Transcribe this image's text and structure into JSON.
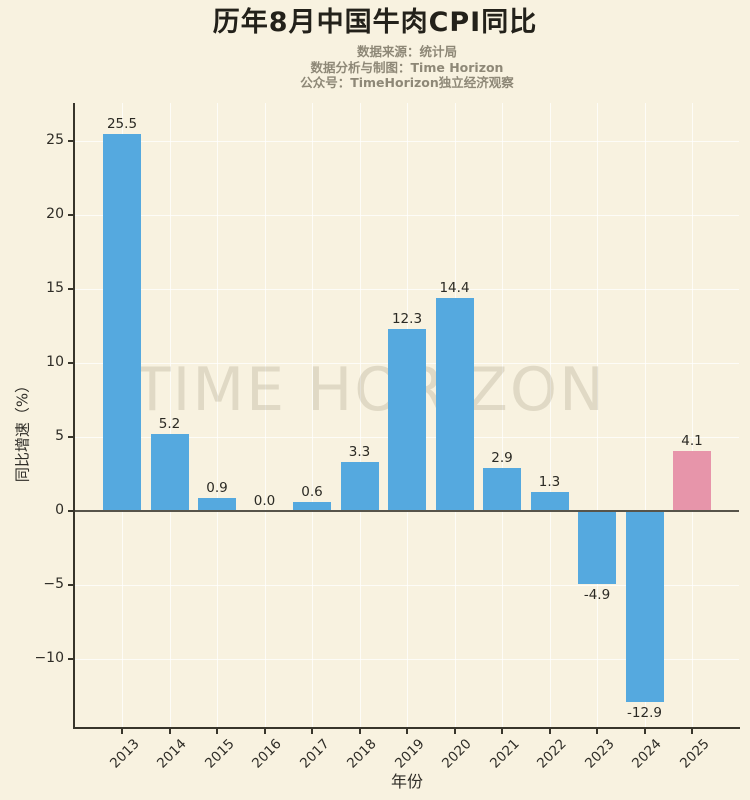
{
  "chart_data": {
    "type": "bar",
    "title": "历年8月中国牛肉CPI同比",
    "subtitle_lines": [
      "数据来源：统计局",
      "数据分析与制图：Time Horizon",
      "公众号：TimeHorizon独立经济观察"
    ],
    "watermark": "TIME HORIZON",
    "categories": [
      "2013",
      "2014",
      "2015",
      "2016",
      "2017",
      "2018",
      "2019",
      "2020",
      "2021",
      "2022",
      "2023",
      "2024",
      "2025"
    ],
    "values": [
      25.5,
      5.2,
      0.9,
      0.0,
      0.6,
      3.3,
      12.3,
      14.4,
      2.9,
      1.3,
      -4.9,
      -12.9,
      4.1
    ],
    "value_labels": [
      "25.5",
      "5.2",
      "0.9",
      "0.0",
      "0.6",
      "3.3",
      "12.3",
      "14.4",
      "2.9",
      "1.3",
      "-4.9",
      "-12.9",
      "4.1"
    ],
    "xlabel": "年份",
    "ylabel": "同比增速（%）",
    "yticks": [
      25,
      20,
      15,
      10,
      5,
      0,
      -5,
      -10
    ],
    "ytick_labels": [
      "25",
      "20",
      "15",
      "10",
      "5",
      "0",
      "−5",
      "−10"
    ],
    "ylim": [
      -14.6,
      27.6
    ],
    "grid": true,
    "legend_position": "none",
    "colors": {
      "bar": "#55a9df",
      "highlight": "#e795aa",
      "background": "#f8f2e0",
      "zero_line": "#57544a",
      "spine": "#38352b"
    },
    "highlight_index": 12
  }
}
